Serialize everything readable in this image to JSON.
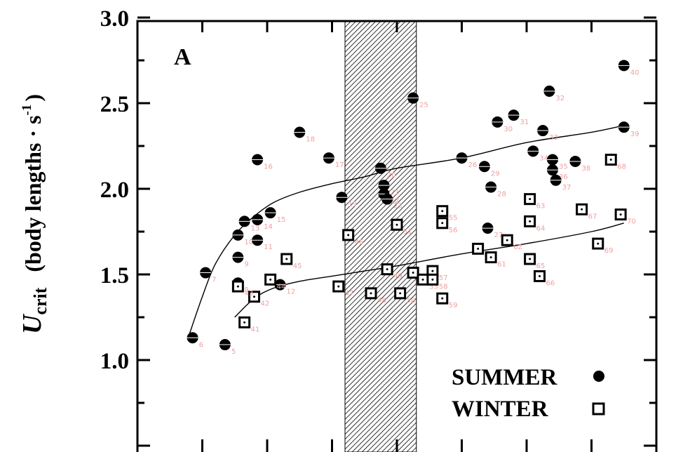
{
  "chart_data": {
    "type": "scatter",
    "panel_label": "A",
    "ylabel": {
      "italic": "U",
      "sub": "crit",
      "text": "(body lengths · s",
      "sup": "-1",
      "close": ")"
    },
    "yticks": [
      "1.0",
      "1.5",
      "2.0",
      "2.5",
      "3.0"
    ],
    "ylim": [
      0.4,
      3.0
    ],
    "xlim": [
      0,
      8
    ],
    "shaded_region": [
      3.2,
      4.3
    ],
    "legend": {
      "summer": "SUMMER",
      "winter": "WINTER",
      "placement": "bottom-right"
    },
    "series": [
      {
        "name": "SUMMER",
        "marker": "filled-circle",
        "points": [
          {
            "x": 1.05,
            "y": 1.51,
            "id": "7"
          },
          {
            "x": 0.85,
            "y": 1.13,
            "id": "6"
          },
          {
            "x": 1.35,
            "y": 1.09,
            "id": "5"
          },
          {
            "x": 1.55,
            "y": 1.45,
            "id": "8"
          },
          {
            "x": 1.55,
            "y": 1.6,
            "id": "9"
          },
          {
            "x": 1.55,
            "y": 1.73,
            "id": "10"
          },
          {
            "x": 1.65,
            "y": 1.81,
            "id": "13"
          },
          {
            "x": 1.85,
            "y": 1.7,
            "id": "11"
          },
          {
            "x": 1.85,
            "y": 1.82,
            "id": "14"
          },
          {
            "x": 2.05,
            "y": 1.86,
            "id": "15"
          },
          {
            "x": 1.85,
            "y": 2.17,
            "id": "16"
          },
          {
            "x": 2.2,
            "y": 1.44,
            "id": "12"
          },
          {
            "x": 2.5,
            "y": 2.33,
            "id": "18"
          },
          {
            "x": 2.95,
            "y": 2.18,
            "id": "17"
          },
          {
            "x": 3.15,
            "y": 1.95,
            "id": "19"
          },
          {
            "x": 3.75,
            "y": 2.12,
            "id": "20"
          },
          {
            "x": 3.8,
            "y": 2.02,
            "id": "21"
          },
          {
            "x": 3.8,
            "y": 1.97,
            "id": "22"
          },
          {
            "x": 3.85,
            "y": 1.94,
            "id": "23"
          },
          {
            "x": 4.25,
            "y": 2.53,
            "id": "25"
          },
          {
            "x": 5.0,
            "y": 2.18,
            "id": "26"
          },
          {
            "x": 5.4,
            "y": 1.77,
            "id": "27"
          },
          {
            "x": 5.45,
            "y": 2.01,
            "id": "28"
          },
          {
            "x": 5.35,
            "y": 2.13,
            "id": "29"
          },
          {
            "x": 5.55,
            "y": 2.39,
            "id": "30"
          },
          {
            "x": 5.8,
            "y": 2.43,
            "id": "31"
          },
          {
            "x": 6.35,
            "y": 2.57,
            "id": "32"
          },
          {
            "x": 6.25,
            "y": 2.34,
            "id": "33"
          },
          {
            "x": 6.1,
            "y": 2.22,
            "id": "34"
          },
          {
            "x": 6.4,
            "y": 2.17,
            "id": "35"
          },
          {
            "x": 6.4,
            "y": 2.11,
            "id": "36"
          },
          {
            "x": 6.45,
            "y": 2.05,
            "id": "37"
          },
          {
            "x": 6.75,
            "y": 2.16,
            "id": "38"
          },
          {
            "x": 7.5,
            "y": 2.36,
            "id": "39"
          },
          {
            "x": 7.5,
            "y": 2.72,
            "id": "40"
          }
        ]
      },
      {
        "name": "WINTER",
        "marker": "open-square",
        "points": [
          {
            "x": 1.65,
            "y": 1.22,
            "id": "41"
          },
          {
            "x": 1.8,
            "y": 1.37,
            "id": "42"
          },
          {
            "x": 1.55,
            "y": 1.43,
            "id": "43"
          },
          {
            "x": 2.05,
            "y": 1.47,
            "id": "44"
          },
          {
            "x": 2.3,
            "y": 1.59,
            "id": "45"
          },
          {
            "x": 3.1,
            "y": 1.43,
            "id": "47"
          },
          {
            "x": 3.25,
            "y": 1.73,
            "id": "46"
          },
          {
            "x": 3.6,
            "y": 1.39,
            "id": "48"
          },
          {
            "x": 3.85,
            "y": 1.53,
            "id": "49"
          },
          {
            "x": 4.05,
            "y": 1.39,
            "id": "50"
          },
          {
            "x": 4.0,
            "y": 1.79,
            "id": "51"
          },
          {
            "x": 4.25,
            "y": 1.51,
            "id": "52"
          },
          {
            "x": 4.4,
            "y": 1.47,
            "id": "53"
          },
          {
            "x": 4.7,
            "y": 1.36,
            "id": "59"
          },
          {
            "x": 4.55,
            "y": 1.52,
            "id": "57"
          },
          {
            "x": 4.55,
            "y": 1.47,
            "id": "58"
          },
          {
            "x": 4.7,
            "y": 1.87,
            "id": "55"
          },
          {
            "x": 4.7,
            "y": 1.8,
            "id": "56"
          },
          {
            "x": 5.25,
            "y": 1.65,
            "id": "60"
          },
          {
            "x": 5.45,
            "y": 1.6,
            "id": "61"
          },
          {
            "x": 5.7,
            "y": 1.7,
            "id": "62"
          },
          {
            "x": 6.05,
            "y": 1.94,
            "id": "63"
          },
          {
            "x": 6.05,
            "y": 1.81,
            "id": "64"
          },
          {
            "x": 6.05,
            "y": 1.59,
            "id": "65"
          },
          {
            "x": 6.2,
            "y": 1.49,
            "id": "66"
          },
          {
            "x": 6.85,
            "y": 1.88,
            "id": "67"
          },
          {
            "x": 7.3,
            "y": 2.17,
            "id": "68"
          },
          {
            "x": 7.1,
            "y": 1.68,
            "id": "69"
          },
          {
            "x": 7.45,
            "y": 1.85,
            "id": "70"
          }
        ]
      }
    ],
    "curves": [
      {
        "name": "summer-fit",
        "points": [
          [
            0.8,
            1.15
          ],
          [
            1.0,
            1.37
          ],
          [
            1.2,
            1.56
          ],
          [
            1.5,
            1.73
          ],
          [
            1.8,
            1.84
          ],
          [
            2.1,
            1.92
          ],
          [
            2.5,
            1.98
          ],
          [
            3.0,
            2.03
          ],
          [
            3.5,
            2.07
          ],
          [
            4.0,
            2.12
          ],
          [
            5.0,
            2.18
          ],
          [
            6.0,
            2.27
          ],
          [
            7.0,
            2.33
          ],
          [
            7.5,
            2.37
          ]
        ]
      },
      {
        "name": "winter-fit",
        "points": [
          [
            1.5,
            1.25
          ],
          [
            1.8,
            1.36
          ],
          [
            2.1,
            1.42
          ],
          [
            2.5,
            1.46
          ],
          [
            3.0,
            1.49
          ],
          [
            3.5,
            1.52
          ],
          [
            4.0,
            1.55
          ],
          [
            5.0,
            1.62
          ],
          [
            6.0,
            1.68
          ],
          [
            7.0,
            1.75
          ],
          [
            7.5,
            1.8
          ]
        ]
      }
    ]
  }
}
